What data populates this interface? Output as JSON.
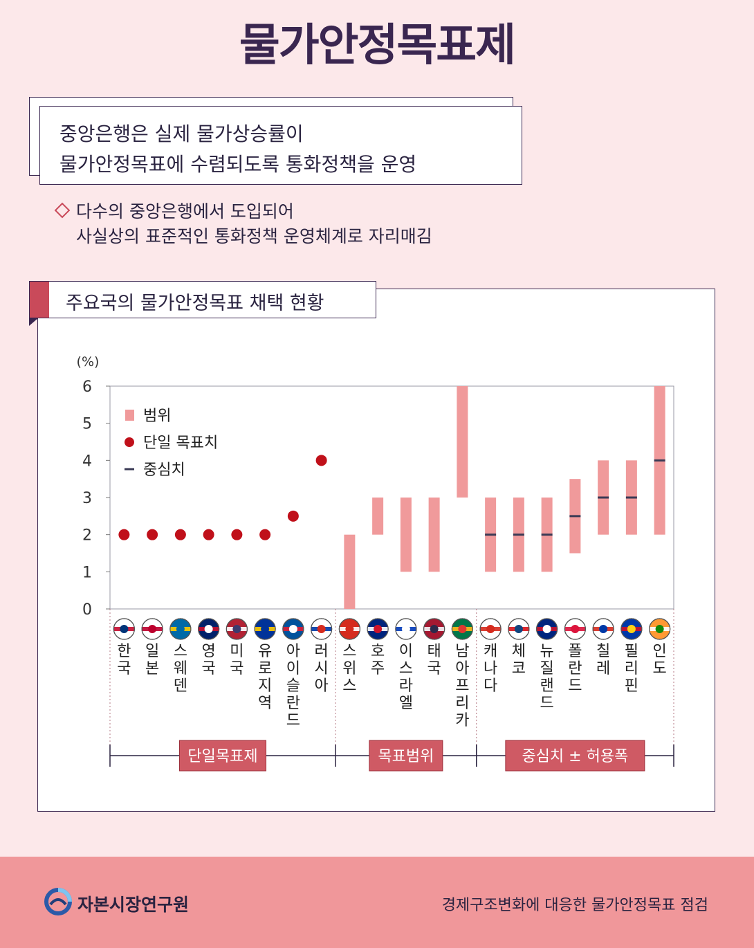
{
  "title": "물가안정목표제",
  "summary": {
    "line1": "중앙은행은 실제 물가상승률이",
    "line2": "물가안정목표에 수렴되도록 통화정책을 운영"
  },
  "bullet": {
    "line1": "다수의 중앙은행에서 도입되어",
    "line2": "사실상의 표준적인 통화정책 운영체계로 자리매김"
  },
  "chart_title": "주요국의 물가안정목표 채택 현황",
  "colors": {
    "range": "#f09a9b",
    "point": "#c0101a",
    "center": "#3a3a55",
    "group_label_bg": "#cf5a64",
    "accent": "#c94a5a"
  },
  "chart_data": {
    "type": "range-dot",
    "ylabel": "(%)",
    "ylim": [
      0,
      6
    ],
    "yticks": [
      0,
      1,
      2,
      3,
      4,
      5,
      6
    ],
    "grid": false,
    "legend": {
      "position": "top-left",
      "items": [
        {
          "label": "범위",
          "kind": "range"
        },
        {
          "label": "단일 목표치",
          "kind": "point"
        },
        {
          "label": "중심치",
          "kind": "center"
        }
      ]
    },
    "countries": [
      {
        "name": "한국",
        "group": 0,
        "point": 2,
        "flag": "kr"
      },
      {
        "name": "일본",
        "group": 0,
        "point": 2,
        "flag": "jp"
      },
      {
        "name": "스웨덴",
        "group": 0,
        "point": 2,
        "flag": "se"
      },
      {
        "name": "영국",
        "group": 0,
        "point": 2,
        "flag": "gb"
      },
      {
        "name": "미국",
        "group": 0,
        "point": 2,
        "flag": "us"
      },
      {
        "name": "유로지역",
        "group": 0,
        "point": 2,
        "flag": "eu"
      },
      {
        "name": "아이슬란드",
        "group": 0,
        "point": 2.5,
        "flag": "is"
      },
      {
        "name": "러시아",
        "group": 0,
        "point": 4,
        "flag": "ru"
      },
      {
        "name": "스위스",
        "group": 1,
        "low": 0,
        "high": 2,
        "flag": "ch"
      },
      {
        "name": "호주",
        "group": 1,
        "low": 2,
        "high": 3,
        "flag": "au"
      },
      {
        "name": "이스라엘",
        "group": 1,
        "low": 1,
        "high": 3,
        "flag": "il"
      },
      {
        "name": "태국",
        "group": 1,
        "low": 1,
        "high": 3,
        "flag": "th"
      },
      {
        "name": "남아프리카",
        "group": 1,
        "low": 3,
        "high": 6,
        "flag": "za"
      },
      {
        "name": "캐나다",
        "group": 2,
        "low": 1,
        "high": 3,
        "center": 2,
        "flag": "ca"
      },
      {
        "name": "체코",
        "group": 2,
        "low": 1,
        "high": 3,
        "center": 2,
        "flag": "cz"
      },
      {
        "name": "뉴질랜드",
        "group": 2,
        "low": 1,
        "high": 3,
        "center": 2,
        "flag": "nz"
      },
      {
        "name": "폴란드",
        "group": 2,
        "low": 1.5,
        "high": 3.5,
        "center": 2.5,
        "flag": "pl"
      },
      {
        "name": "칠레",
        "group": 2,
        "low": 2,
        "high": 4,
        "center": 3,
        "flag": "cl"
      },
      {
        "name": "필리핀",
        "group": 2,
        "low": 2,
        "high": 4,
        "center": 3,
        "flag": "ph"
      },
      {
        "name": "인도",
        "group": 2,
        "low": 2,
        "high": 6,
        "center": 4,
        "flag": "in"
      }
    ],
    "groups": [
      "단일목표제",
      "목표범위",
      "중심치 ± 허용폭"
    ]
  },
  "footer": {
    "org": "자본시장연구원",
    "source": "경제구조변화에 대응한 물가안정목표 점검"
  }
}
